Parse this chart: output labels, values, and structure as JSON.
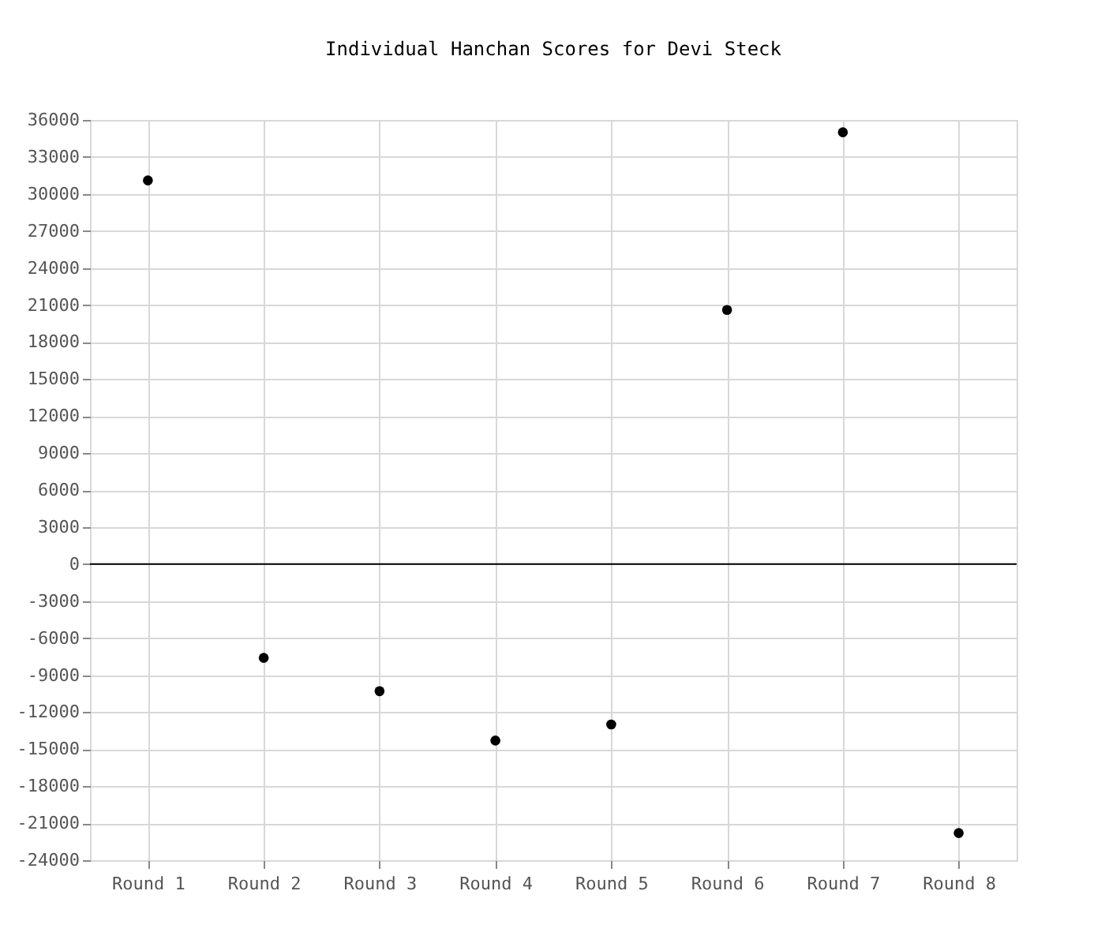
{
  "chart_data": {
    "type": "scatter",
    "title": "Individual Hanchan Scores for Devi Steck",
    "categories": [
      "Round 1",
      "Round 2",
      "Round 3",
      "Round 4",
      "Round 5",
      "Round 6",
      "Round 7",
      "Round 8"
    ],
    "series": [
      {
        "color": "#000000",
        "values": [
          31100,
          -7600,
          -10300,
          -14300,
          -13000,
          20600,
          35000,
          -21800
        ]
      }
    ],
    "ylim": [
      -24000,
      36000
    ],
    "yticks": [
      -24000,
      -21000,
      -18000,
      -15000,
      -12000,
      -9000,
      -6000,
      -3000,
      0,
      3000,
      6000,
      9000,
      12000,
      15000,
      18000,
      21000,
      24000,
      27000,
      30000,
      33000,
      36000
    ],
    "ref_lines": [
      {
        "axis": "y",
        "value": 0,
        "color": "#000000"
      }
    ],
    "grid": true,
    "marker": "circle"
  }
}
